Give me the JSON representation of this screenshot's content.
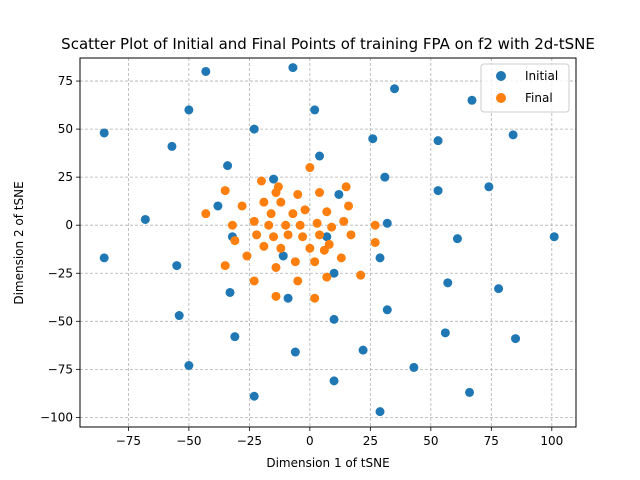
{
  "chart_data": {
    "type": "scatter",
    "title": "Scatter Plot of Initial and Final Points of training FPA on f2 with 2d-tSNE",
    "xlabel": "Dimension 1 of tSNE",
    "ylabel": "Dimension 2 of tSNE",
    "xlim": [
      -95,
      110
    ],
    "ylim": [
      -105,
      87
    ],
    "xticks": [
      -75,
      -50,
      -25,
      0,
      25,
      50,
      75,
      100
    ],
    "yticks": [
      -100,
      -75,
      -50,
      -25,
      0,
      25,
      50,
      75
    ],
    "xtick_labels": [
      "−75",
      "−50",
      "−25",
      "0",
      "25",
      "50",
      "75",
      "100"
    ],
    "ytick_labels": [
      "−100",
      "−75",
      "−50",
      "−25",
      "0",
      "25",
      "50",
      "75"
    ],
    "grid": true,
    "grid_style": "dashed",
    "legend_position": "top-right",
    "series": [
      {
        "name": "Initial",
        "color": "#1f77b4",
        "points": [
          [
            -85,
            48
          ],
          [
            -85,
            -17
          ],
          [
            -68,
            3
          ],
          [
            -57,
            41
          ],
          [
            -55,
            -21
          ],
          [
            -54,
            -47
          ],
          [
            -50,
            60
          ],
          [
            -50,
            -73
          ],
          [
            -43,
            80
          ],
          [
            -38,
            10
          ],
          [
            -34,
            31
          ],
          [
            -33,
            -35
          ],
          [
            -32,
            -6
          ],
          [
            -31,
            -58
          ],
          [
            -23,
            50
          ],
          [
            -23,
            -89
          ],
          [
            -15,
            24
          ],
          [
            -11,
            -16
          ],
          [
            -9,
            -38
          ],
          [
            -7,
            82
          ],
          [
            -6,
            -66
          ],
          [
            2,
            60
          ],
          [
            4,
            36
          ],
          [
            7,
            -6
          ],
          [
            10,
            -25
          ],
          [
            10,
            -49
          ],
          [
            10,
            -81
          ],
          [
            12,
            16
          ],
          [
            22,
            -65
          ],
          [
            26,
            45
          ],
          [
            29,
            -17
          ],
          [
            29,
            -97
          ],
          [
            31,
            25
          ],
          [
            32,
            1
          ],
          [
            32,
            -44
          ],
          [
            35,
            71
          ],
          [
            43,
            -74
          ],
          [
            53,
            44
          ],
          [
            53,
            18
          ],
          [
            56,
            -56
          ],
          [
            57,
            -30
          ],
          [
            61,
            -7
          ],
          [
            66,
            -87
          ],
          [
            67,
            65
          ],
          [
            74,
            20
          ],
          [
            78,
            -33
          ],
          [
            84,
            47
          ],
          [
            85,
            -59
          ],
          [
            101,
            -6
          ]
        ]
      },
      {
        "name": "Final",
        "color": "#ff7f0e",
        "points": [
          [
            -43,
            6
          ],
          [
            -35,
            18
          ],
          [
            -35,
            -21
          ],
          [
            -32,
            0
          ],
          [
            -31,
            -8
          ],
          [
            -28,
            10
          ],
          [
            -26,
            -16
          ],
          [
            -23,
            2
          ],
          [
            -23,
            -29
          ],
          [
            -22,
            -5
          ],
          [
            -20,
            23
          ],
          [
            -19,
            12
          ],
          [
            -19,
            -11
          ],
          [
            -17,
            0
          ],
          [
            -16,
            6
          ],
          [
            -15,
            -6
          ],
          [
            -14,
            17
          ],
          [
            -14,
            -22
          ],
          [
            -14,
            -37
          ],
          [
            -13,
            20
          ],
          [
            -12,
            12
          ],
          [
            -12,
            -12
          ],
          [
            -10,
            0
          ],
          [
            -9,
            -5
          ],
          [
            -7,
            6
          ],
          [
            -6,
            -19
          ],
          [
            -5,
            16
          ],
          [
            -5,
            -29
          ],
          [
            -4,
            0
          ],
          [
            -3,
            -6
          ],
          [
            -2,
            8
          ],
          [
            0,
            30
          ],
          [
            0,
            -12
          ],
          [
            2,
            -38
          ],
          [
            2,
            -19
          ],
          [
            3,
            1
          ],
          [
            4,
            17
          ],
          [
            4,
            -5
          ],
          [
            6,
            -13
          ],
          [
            7,
            7
          ],
          [
            7,
            -27
          ],
          [
            8,
            -10
          ],
          [
            9,
            -1
          ],
          [
            13,
            -17
          ],
          [
            14,
            2
          ],
          [
            15,
            20
          ],
          [
            16,
            10
          ],
          [
            17,
            -5
          ],
          [
            21,
            -26
          ],
          [
            27,
            0
          ],
          [
            27,
            -9
          ]
        ]
      }
    ]
  }
}
